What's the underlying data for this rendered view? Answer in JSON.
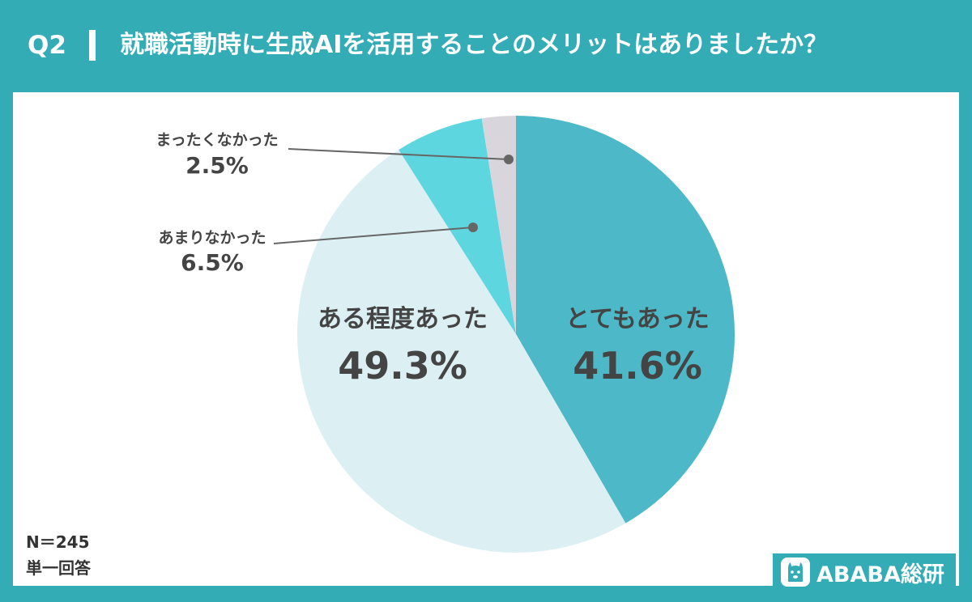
{
  "header": {
    "question": "Q2",
    "title": "就職活動時に生成AIを活用することのメリットはありましたか？"
  },
  "chart_data": {
    "type": "pie",
    "start": "12 o'clock, clockwise",
    "slices": [
      {
        "label": "とてもあった",
        "value": 41.6,
        "value_label": "41.6%",
        "color": "#4db8c8"
      },
      {
        "label": "ある程度あった",
        "value": 49.3,
        "value_label": "49.3%",
        "color": "#dcf0f4"
      },
      {
        "label": "あまりなかった",
        "value": 6.5,
        "value_label": "6.5%",
        "color": "#5dd6e0"
      },
      {
        "label": "まったくなかった",
        "value": 2.5,
        "value_label": "2.5%",
        "color": "#d8d6dc"
      }
    ]
  },
  "notes": {
    "n": "N＝245",
    "type": "単一回答"
  },
  "brand": {
    "name": "ABABA総研",
    "icon": "alpaca-logo-icon"
  },
  "colors": {
    "frame": "#33acb6",
    "text": "#444444"
  }
}
